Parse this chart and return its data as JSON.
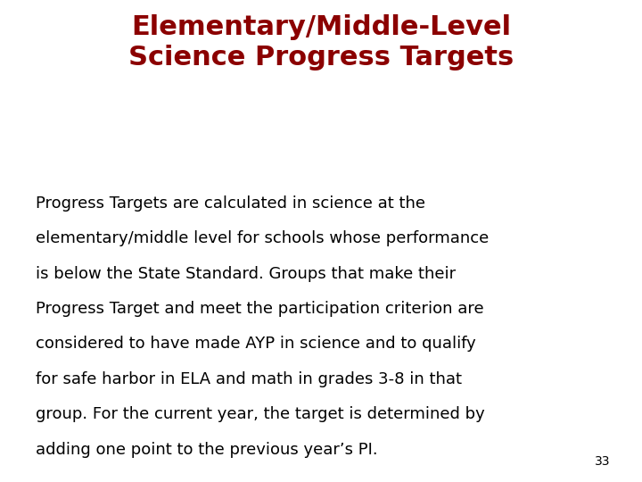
{
  "title_line1": "Elementary/Middle-Level",
  "title_line2": "Science Progress Targets",
  "title_color": "#8B0000",
  "body_lines": [
    "Progress Targets are calculated in science at the",
    "elementary/middle level for schools whose performance",
    "is below the State Standard. Groups that make their",
    "Progress Target and meet the participation criterion are",
    "considered to have made AYP in science and to qualify",
    "for safe harbor in ELA and math in grades 3-8 in that",
    "group. For the current year, the target is determined by",
    "adding one point to the previous year’s PI."
  ],
  "body_color": "#000000",
  "background_color": "#ffffff",
  "page_number": "33",
  "title_fontsize": 22,
  "body_fontsize": 13,
  "page_num_fontsize": 10
}
